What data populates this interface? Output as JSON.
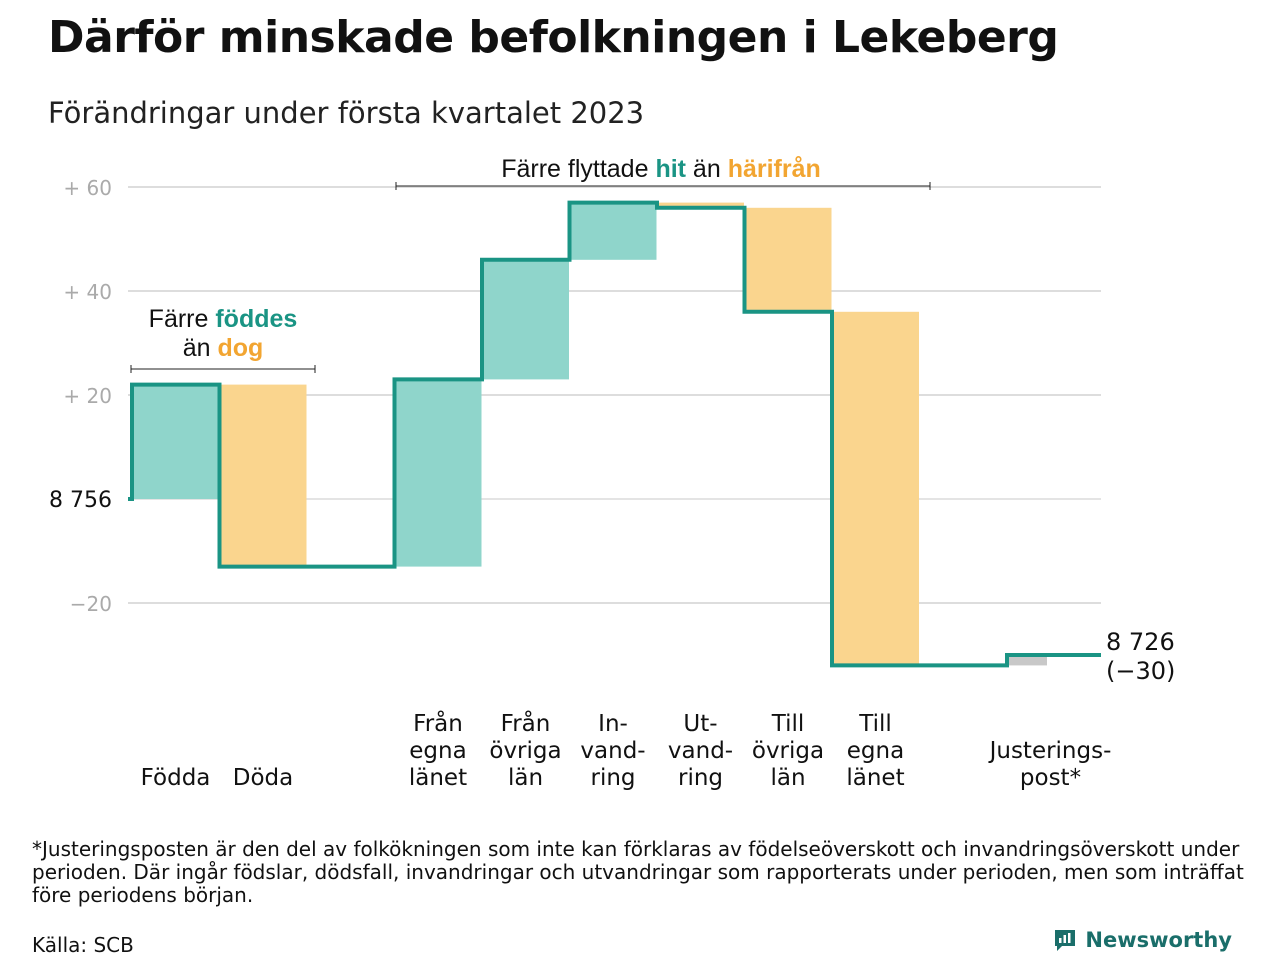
{
  "title": "Därför minskade befolkningen i Lekeberg",
  "subtitle": "Förändringar under första kvartalet 2023",
  "footnote": "*Justeringsposten är den del av folkökningen som inte kan förklaras av födelseöverskott och invandringsöverskott under perioden. Där ingår födslar, dödsfall, invandringar och utvandringar som rapporterats under perioden, men som inträffat före periodens början.",
  "source": "Källa: SCB",
  "brand": "Newsworthy",
  "colors": {
    "inflow": "#8fd5cb",
    "outflow": "#fad58e",
    "adjust": "#c8c8c8",
    "line": "#1a9484",
    "accent_teal": "#1a9484",
    "accent_orange": "#f2a531"
  },
  "chart_data": {
    "type": "waterfall",
    "start_value": 8756,
    "start_label": "8 756",
    "end_label": "8 726",
    "end_change_label": "(−30)",
    "y_range": [
      -32,
      62
    ],
    "yticks": [
      {
        "value": -20,
        "label": "−20"
      },
      {
        "value": 0,
        "label": "8 756"
      },
      {
        "value": 20,
        "label": "+ 20"
      },
      {
        "value": 40,
        "label": "+ 40"
      },
      {
        "value": 60,
        "label": "+ 60"
      }
    ],
    "steps": [
      {
        "label": "Födda",
        "change": 22,
        "kind": "inflow"
      },
      {
        "label": "Döda",
        "change": -35,
        "kind": "outflow"
      },
      {
        "label": "",
        "change": 0,
        "kind": "gap"
      },
      {
        "label": "Från egna länet",
        "change": 36,
        "kind": "inflow"
      },
      {
        "label": "Från övriga län",
        "change": 23,
        "kind": "inflow"
      },
      {
        "label": "In- vand- ring",
        "change": 11,
        "kind": "inflow"
      },
      {
        "label": "Ut- vand- ring",
        "change": -1,
        "kind": "outflow"
      },
      {
        "label": "Till övriga län",
        "change": -20,
        "kind": "outflow"
      },
      {
        "label": "Till egna länet",
        "change": -68,
        "kind": "outflow"
      },
      {
        "label": "",
        "change": 0,
        "kind": "gap"
      },
      {
        "label": "Justerings- post*",
        "change": 2,
        "kind": "adjust"
      }
    ],
    "category_lines": [
      [
        "Födda"
      ],
      [
        "Döda"
      ],
      [],
      [
        "Från",
        "egna",
        "länet"
      ],
      [
        "Från",
        "övriga",
        "län"
      ],
      [
        "In-",
        "vand-",
        "ring"
      ],
      [
        "Ut-",
        "vand-",
        "ring"
      ],
      [
        "Till",
        "övriga",
        "län"
      ],
      [
        "Till",
        "egna",
        "länet"
      ],
      [],
      [
        "Justerings-",
        "post*"
      ]
    ],
    "annotations": [
      {
        "text_parts": [
          "Färre ",
          "föddes"
        ],
        "text_parts_2": [
          "än ",
          "dog"
        ]
      },
      {
        "text_parts": [
          "Färre flyttade ",
          "hit",
          " än ",
          "härifrån"
        ]
      }
    ],
    "grid": true
  }
}
